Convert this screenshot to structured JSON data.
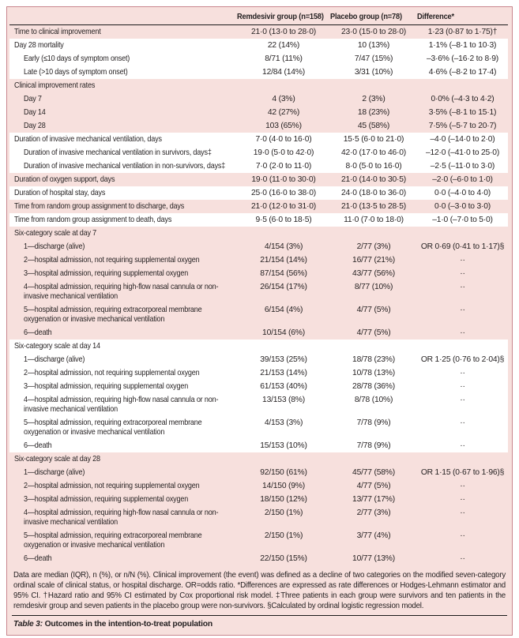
{
  "colors": {
    "row_pink": "#f7e0dd",
    "row_white": "#ffffff",
    "frame_border": "#c9868d",
    "rule_black": "#1a1a1a",
    "text": "#231f20"
  },
  "table": {
    "header": {
      "label": "",
      "remdesivir": "Remdesivir group (n=158)",
      "placebo": "Placebo group (n=78)",
      "difference": "Difference*"
    },
    "rows": [
      {
        "label": "Time to clinical improvement",
        "indent": 0,
        "band": "p",
        "c2": "21·0 (13·0 to 28·0)",
        "c3": "23·0 (15·0 to 28·0)",
        "c4": "1·23 (0·87 to 1·75)†"
      },
      {
        "label": "Day 28 mortality",
        "indent": 0,
        "band": "w",
        "c2": "22 (14%)",
        "c3": "10 (13%)",
        "c4": "1·1% (–8·1 to 10·3)"
      },
      {
        "label": "Early (≤10 days of symptom onset)",
        "indent": 1,
        "band": "w",
        "c2": "8/71 (11%)",
        "c3": "7/47 (15%)",
        "c4": "–3·6% (–16·2 to 8·9)"
      },
      {
        "label": "Late (>10 days of symptom onset)",
        "indent": 1,
        "band": "w",
        "c2": "12/84 (14%)",
        "c3": "3/31 (10%)",
        "c4": "4·6% (–8·2 to 17·4)"
      },
      {
        "label": "Clinical improvement rates",
        "indent": 0,
        "band": "p",
        "section": true,
        "c2": "",
        "c3": "",
        "c4": ""
      },
      {
        "label": "Day 7",
        "indent": 1,
        "band": "p",
        "c2": "4 (3%)",
        "c3": "2 (3%)",
        "c4": "0·0% (–4·3 to 4·2)"
      },
      {
        "label": "Day 14",
        "indent": 1,
        "band": "p",
        "c2": "42 (27%)",
        "c3": "18 (23%)",
        "c4": "3·5% (–8·1 to 15·1)"
      },
      {
        "label": "Day 28",
        "indent": 1,
        "band": "p",
        "c2": "103 (65%)",
        "c3": "45 (58%)",
        "c4": "7·5% (–5·7 to 20·7)"
      },
      {
        "label": "Duration of invasive mechanical ventilation, days",
        "indent": 0,
        "band": "w",
        "c2": "7·0 (4·0 to 16·0)",
        "c3": "15·5 (6·0 to 21·0)",
        "c4": "–4·0 (–14·0 to 2·0)"
      },
      {
        "label": "Duration of invasive mechanical ventilation in survivors, days‡",
        "indent": 1,
        "band": "w",
        "c2": "19·0 (5·0 to 42·0)",
        "c3": "42·0 (17·0 to 46·0)",
        "c4": "–12·0 (–41·0 to 25·0)"
      },
      {
        "label": "Duration of invasive mechanical ventilation in non-survivors, days‡",
        "indent": 1,
        "band": "w",
        "c2": "7·0 (2·0 to 11·0)",
        "c3": "8·0 (5·0 to 16·0)",
        "c4": "–2·5 (–11·0 to 3·0)"
      },
      {
        "label": "Duration of oxygen support, days",
        "indent": 0,
        "band": "p",
        "c2": "19·0 (11·0 to 30·0)",
        "c3": "21·0 (14·0 to 30·5)",
        "c4": "–2·0 (–6·0 to 1·0)"
      },
      {
        "label": "Duration of hospital stay, days",
        "indent": 0,
        "band": "w",
        "c2": "25·0 (16·0 to 38·0)",
        "c3": "24·0 (18·0 to 36·0)",
        "c4": "0·0 (–4·0 to 4·0)"
      },
      {
        "label": "Time from random group assignment to discharge, days",
        "indent": 0,
        "band": "p",
        "c2": "21·0 (12·0 to 31·0)",
        "c3": "21·0 (13·5 to 28·5)",
        "c4": "0·0 (–3·0 to 3·0)"
      },
      {
        "label": "Time from random group assignment to death, days",
        "indent": 0,
        "band": "w",
        "c2": "9·5 (6·0 to 18·5)",
        "c3": "11·0 (7·0 to 18·0)",
        "c4": "–1·0 (–7·0 to 5·0)"
      },
      {
        "label": "Six-category scale at day 7",
        "indent": 0,
        "band": "p",
        "section": true,
        "c2": "",
        "c3": "",
        "c4": ""
      },
      {
        "label": "1—discharge (alive)",
        "indent": 1,
        "band": "p",
        "c2": "4/154 (3%)",
        "c3": "2/77 (3%)",
        "c4": "OR 0·69 (0·41 to 1·17)§"
      },
      {
        "label": "2—hospital admission, not requiring supplemental oxygen",
        "indent": 1,
        "band": "p",
        "c2": "21/154 (14%)",
        "c3": "16/77 (21%)",
        "c4": "··"
      },
      {
        "label": "3—hospital admission, requiring supplemental oxygen",
        "indent": 1,
        "band": "p",
        "c2": "87/154 (56%)",
        "c3": "43/77 (56%)",
        "c4": "··"
      },
      {
        "label": "4—hospital admission, requiring high-flow nasal cannula or non-invasive mechanical ventilation",
        "indent": 1,
        "band": "p",
        "c2": "26/154 (17%)",
        "c3": "8/77 (10%)",
        "c4": "··"
      },
      {
        "label": "5—hospital admission, requiring extracorporeal membrane oxygenation or invasive mechanical ventilation",
        "indent": 1,
        "band": "p",
        "c2": "6/154 (4%)",
        "c3": "4/77 (5%)",
        "c4": "··"
      },
      {
        "label": "6—death",
        "indent": 1,
        "band": "p",
        "c2": "10/154 (6%)",
        "c3": "4/77 (5%)",
        "c4": "··"
      },
      {
        "label": "Six-category scale at day 14",
        "indent": 0,
        "band": "w",
        "section": true,
        "c2": "",
        "c3": "",
        "c4": ""
      },
      {
        "label": "1—discharge (alive)",
        "indent": 1,
        "band": "w",
        "c2": "39/153 (25%)",
        "c3": "18/78 (23%)",
        "c4": "OR 1·25 (0·76 to 2·04)§"
      },
      {
        "label": "2—hospital admission, not requiring supplemental oxygen",
        "indent": 1,
        "band": "w",
        "c2": "21/153 (14%)",
        "c3": "10/78 (13%)",
        "c4": "··"
      },
      {
        "label": "3—hospital admission, requiring supplemental oxygen",
        "indent": 1,
        "band": "w",
        "c2": "61/153 (40%)",
        "c3": "28/78 (36%)",
        "c4": "··"
      },
      {
        "label": "4—hospital admission, requiring high-flow nasal cannula or non-invasive mechanical ventilation",
        "indent": 1,
        "band": "w",
        "c2": "13/153 (8%)",
        "c3": "8/78 (10%)",
        "c4": "··"
      },
      {
        "label": "5—hospital admission, requiring extracorporeal membrane oxygenation or invasive mechanical ventilation",
        "indent": 1,
        "band": "w",
        "c2": "4/153 (3%)",
        "c3": "7/78 (9%)",
        "c4": "··"
      },
      {
        "label": "6—death",
        "indent": 1,
        "band": "w",
        "c2": "15/153 (10%)",
        "c3": "7/78 (9%)",
        "c4": "··"
      },
      {
        "label": "Six-category scale at day 28",
        "indent": 0,
        "band": "p",
        "section": true,
        "c2": "",
        "c3": "",
        "c4": ""
      },
      {
        "label": "1—discharge (alive)",
        "indent": 1,
        "band": "p",
        "c2": "92/150 (61%)",
        "c3": "45/77 (58%)",
        "c4": "OR 1·15 (0·67 to 1·96)§"
      },
      {
        "label": "2—hospital admission, not requiring supplemental oxygen",
        "indent": 1,
        "band": "p",
        "c2": "14/150 (9%)",
        "c3": "4/77 (5%)",
        "c4": "··"
      },
      {
        "label": "3—hospital admission, requiring supplemental oxygen",
        "indent": 1,
        "band": "p",
        "c2": "18/150 (12%)",
        "c3": "13/77 (17%)",
        "c4": "··"
      },
      {
        "label": "4—hospital admission, requiring high-flow nasal cannula or non-invasive mechanical ventilation",
        "indent": 1,
        "band": "p",
        "c2": "2/150 (1%)",
        "c3": "2/77 (3%)",
        "c4": "··"
      },
      {
        "label": "5—hospital admission, requiring extracorporeal membrane oxygenation or invasive mechanical ventilation",
        "indent": 1,
        "band": "p",
        "c2": "2/150 (1%)",
        "c3": "3/77 (4%)",
        "c4": "··"
      },
      {
        "label": "6—death",
        "indent": 1,
        "band": "p",
        "c2": "22/150 (15%)",
        "c3": "10/77 (13%)",
        "c4": "··"
      }
    ],
    "footnote": "Data are median (IQR), n (%), or n/N (%). Clinical improvement (the event) was defined as a decline of two categories on the modified seven-category ordinal scale of clinical status, or hospital discharge. OR=odds ratio. *Differences are expressed as rate differences or Hodges-Lehmann estimator and 95% CI. †Hazard ratio and 95% CI estimated by Cox proportional risk model. ‡Three patients in each group were survivors and ten patients in the remdesivir group and seven patients in the placebo group were non-survivors. §Calculated by ordinal logistic regression model.",
    "caption_prefix": "Table 3:",
    "caption_text": "Outcomes in the intention-to-treat population"
  }
}
